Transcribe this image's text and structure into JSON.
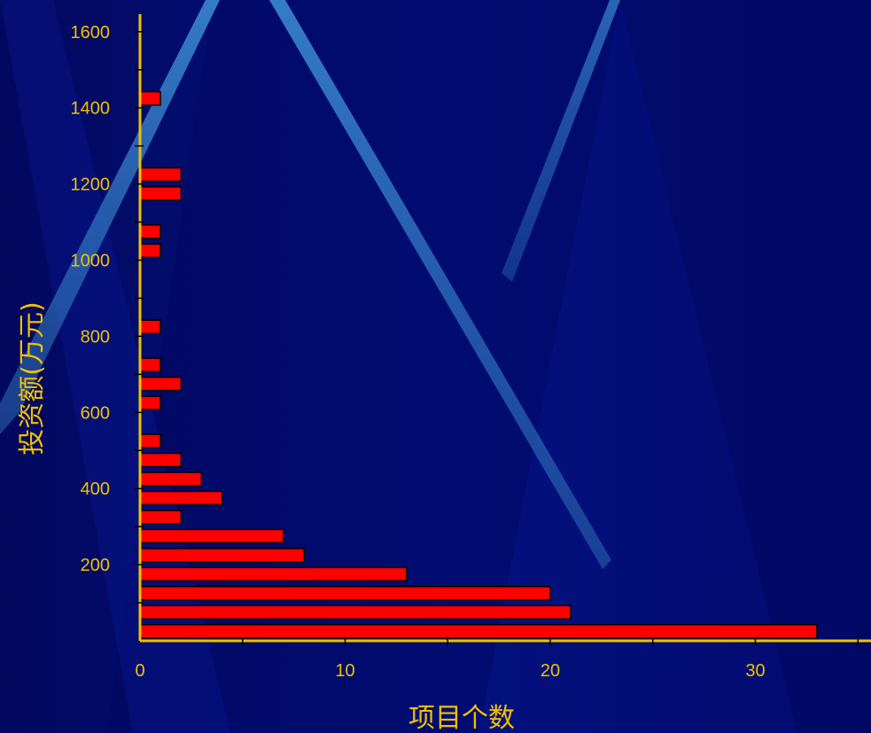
{
  "colors": {
    "background": "#020a6e",
    "axis": "#f0c000",
    "bar_fill": "#ff0000",
    "bar_stroke": "#000000",
    "text": "#f0c000"
  },
  "chart_data": {
    "type": "bar",
    "orientation": "horizontal",
    "title": "",
    "xlabel": "项目个数",
    "ylabel": "投资额(万元)",
    "xlim": [
      0,
      35
    ],
    "ylim": [
      0,
      1600
    ],
    "x_ticks": [
      0,
      10,
      20,
      30
    ],
    "y_ticks": [
      200,
      400,
      600,
      800,
      1000,
      1200,
      1400,
      1600
    ],
    "grid": false,
    "legend": "none",
    "bars": [
      {
        "y": 25,
        "value": 33
      },
      {
        "y": 75,
        "value": 21
      },
      {
        "y": 125,
        "value": 20
      },
      {
        "y": 175,
        "value": 13
      },
      {
        "y": 225,
        "value": 8
      },
      {
        "y": 275,
        "value": 7
      },
      {
        "y": 325,
        "value": 2
      },
      {
        "y": 375,
        "value": 4
      },
      {
        "y": 425,
        "value": 3
      },
      {
        "y": 475,
        "value": 2
      },
      {
        "y": 525,
        "value": 1
      },
      {
        "y": 625,
        "value": 1
      },
      {
        "y": 675,
        "value": 2
      },
      {
        "y": 725,
        "value": 1
      },
      {
        "y": 825,
        "value": 1
      },
      {
        "y": 1025,
        "value": 1
      },
      {
        "y": 1075,
        "value": 1
      },
      {
        "y": 1175,
        "value": 2
      },
      {
        "y": 1225,
        "value": 2
      },
      {
        "y": 1425,
        "value": 1
      }
    ]
  }
}
